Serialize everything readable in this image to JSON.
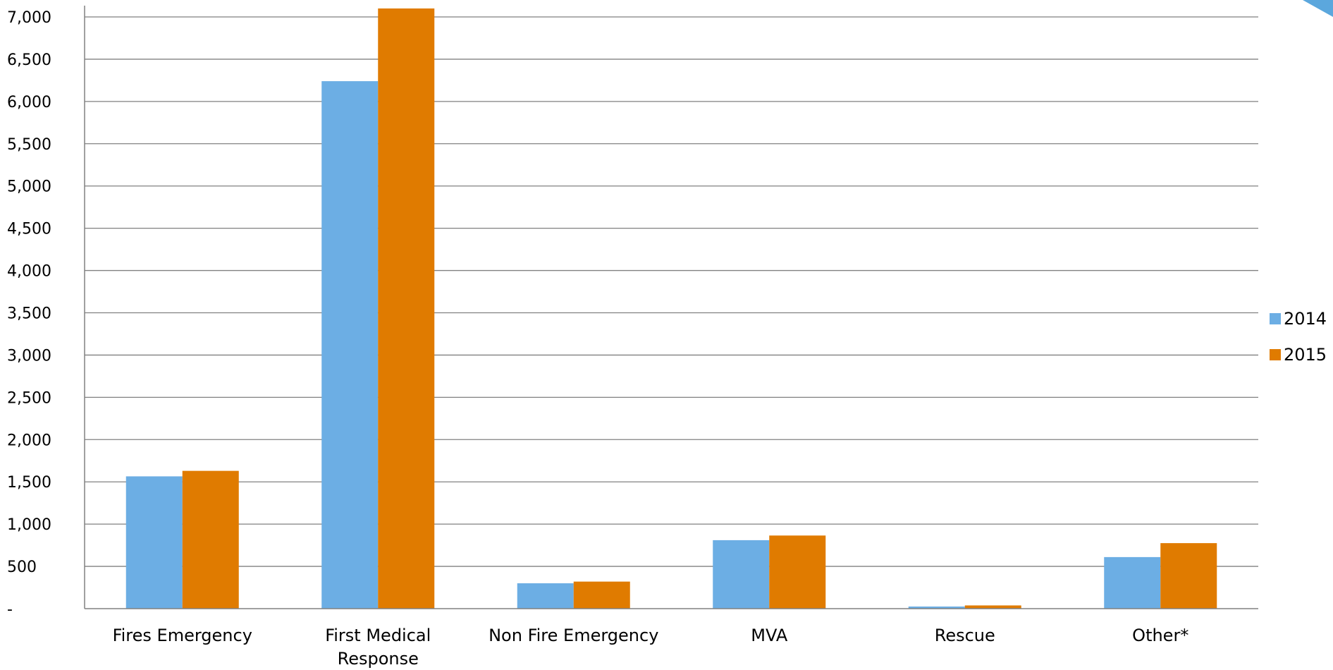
{
  "chart_data": {
    "type": "bar",
    "title": "",
    "xlabel": "",
    "ylabel": "",
    "categories": [
      [
        "Fires Emergency"
      ],
      [
        "First Medical",
        "Response"
      ],
      [
        "Non Fire Emergency"
      ],
      [
        "MVA"
      ],
      [
        "Rescue"
      ],
      [
        "Other*"
      ]
    ],
    "series": [
      {
        "name": "2014",
        "color": "#6CAEE4",
        "values": [
          1565,
          6240,
          300,
          810,
          25,
          610
        ]
      },
      {
        "name": "2015",
        "color": "#E07B00",
        "values": [
          1630,
          7100,
          320,
          865,
          38,
          775
        ]
      }
    ],
    "ylim": [
      0,
      7000
    ],
    "ytick_values": [
      0,
      500,
      1000,
      1500,
      2000,
      2500,
      3000,
      3500,
      4000,
      4500,
      5000,
      5500,
      6000,
      6500,
      7000
    ],
    "ytick_labels": [
      "-",
      "500",
      "1,000",
      "1,500",
      "2,000",
      "2,500",
      "3,000",
      "3,500",
      "4,000",
      "4,500",
      "5,000",
      "5,500",
      "6,000",
      "6,500",
      "7,000"
    ],
    "grid": true,
    "legend_position": "right",
    "gridline_color": "#808080",
    "axis_color": "#808080",
    "corner_accent_color": "#5BA7DD"
  }
}
